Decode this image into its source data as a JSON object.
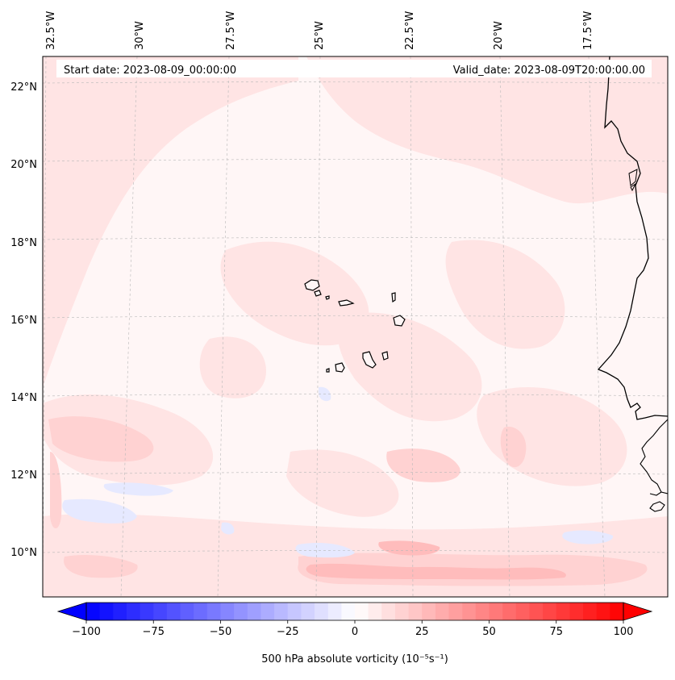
{
  "map": {
    "start_label": "Start date: 2023-08-09_00:00:00",
    "valid_label": "Valid_date: 2023-08-09T20:00:00.00",
    "variable": "500 hPa absolute vorticity",
    "units_label": "500 hPa absolute vorticity (10⁻⁵s⁻¹)",
    "lon_labels": [
      "32.5°W",
      "30°W",
      "27.5°W",
      "25°W",
      "22.5°W",
      "20°W",
      "17.5°W"
    ],
    "lat_labels": [
      "22°N",
      "20°N",
      "18°N",
      "16°N",
      "14°N",
      "12°N",
      "10°N"
    ],
    "features": [
      "Cape Verde Islands",
      "West African coastline"
    ]
  },
  "colorbar": {
    "min": -100,
    "max": 100,
    "tick_values": [
      -100,
      -75,
      -50,
      -25,
      0,
      25,
      50,
      75,
      100
    ],
    "tick_labels": [
      "−100",
      "−75",
      "−50",
      "−25",
      "0",
      "25",
      "50",
      "75",
      "100"
    ],
    "low_color": "#0000ff",
    "mid_color": "#ffffff",
    "high_color": "#ff0000",
    "levels": 41
  }
}
